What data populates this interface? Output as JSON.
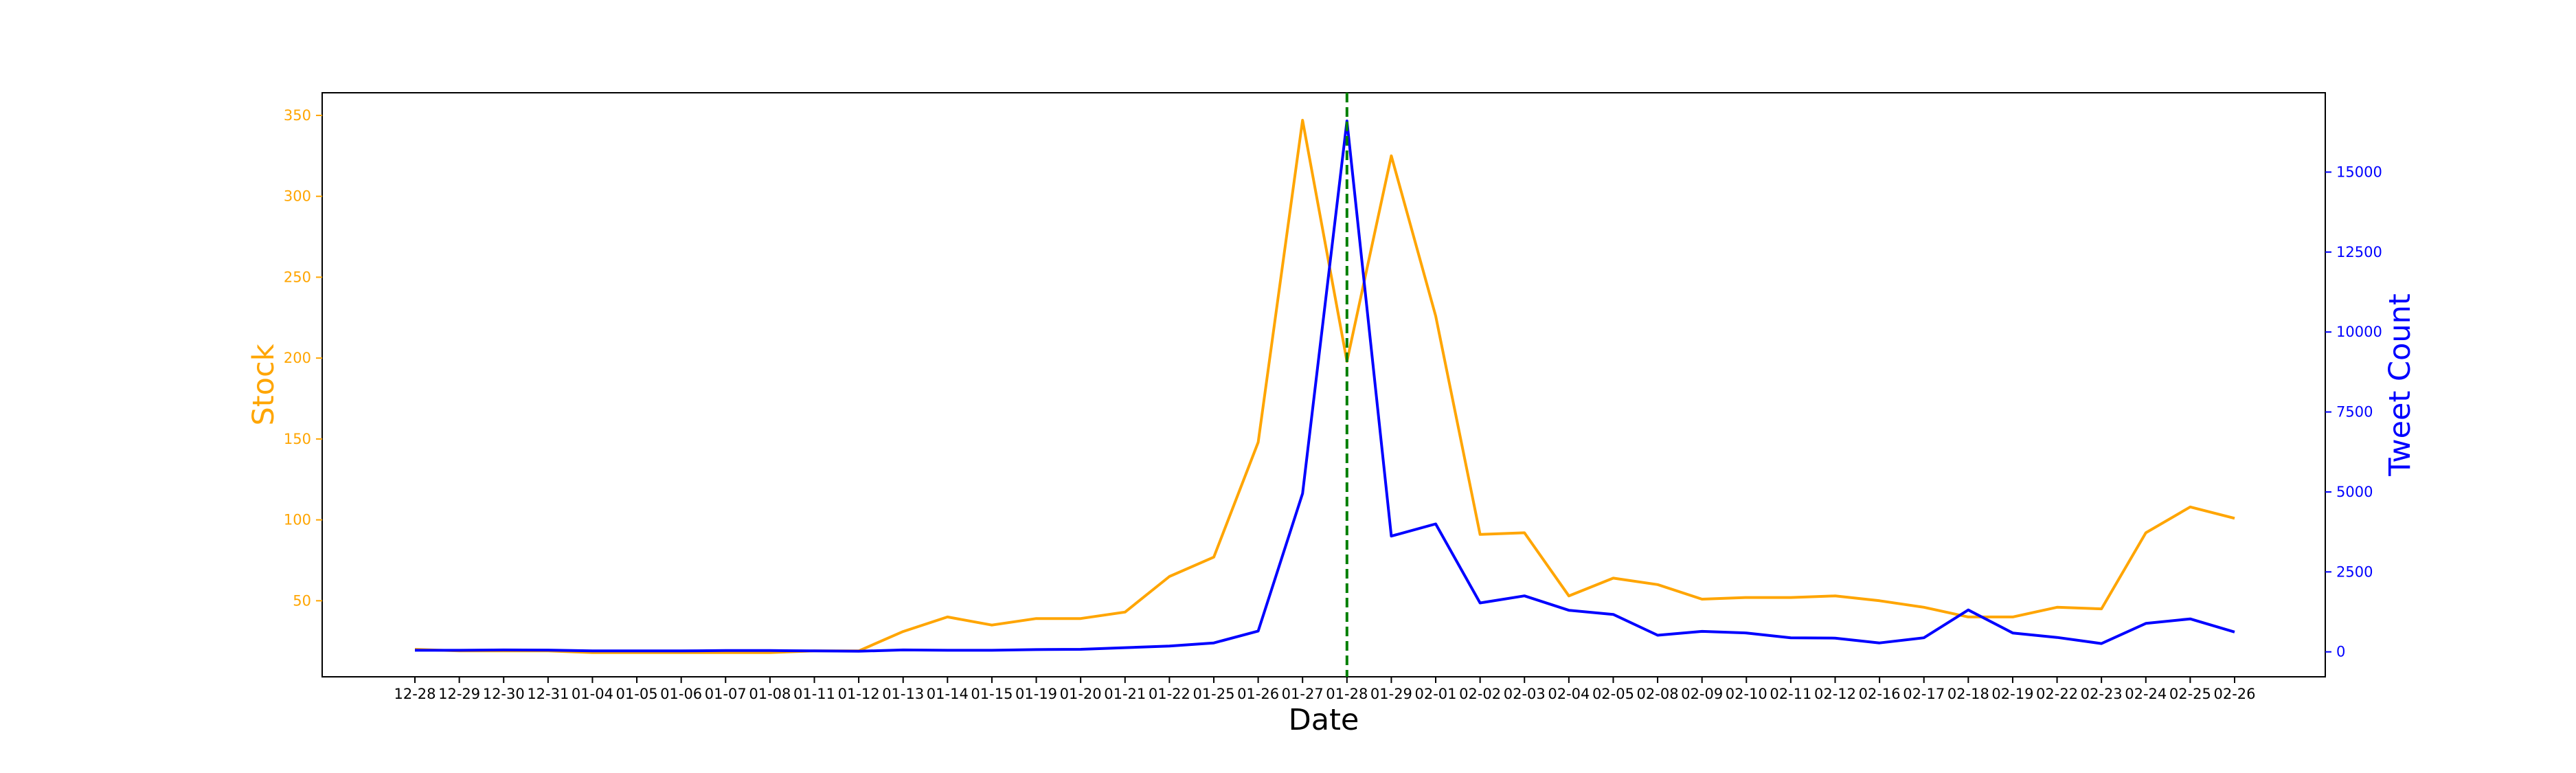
{
  "chart_data": {
    "type": "line",
    "title": "",
    "xlabel": "Date",
    "ylabel_left": "Stock",
    "ylabel_right": "Tweet Count",
    "categories": [
      "12-28",
      "12-29",
      "12-30",
      "12-31",
      "01-04",
      "01-05",
      "01-06",
      "01-07",
      "01-08",
      "01-11",
      "01-12",
      "01-13",
      "01-14",
      "01-15",
      "01-19",
      "01-20",
      "01-21",
      "01-22",
      "01-25",
      "01-26",
      "01-27",
      "01-28",
      "01-29",
      "02-01",
      "02-02",
      "02-03",
      "02-04",
      "02-05",
      "02-08",
      "02-09",
      "02-10",
      "02-11",
      "02-12",
      "02-16",
      "02-17",
      "02-18",
      "02-19",
      "02-22",
      "02-23",
      "02-24",
      "02-25",
      "02-26"
    ],
    "series": [
      {
        "name": "Stock",
        "axis": "left",
        "color": "#ffa500",
        "values": [
          20,
          19,
          19,
          19,
          18,
          18,
          18,
          18,
          18,
          19,
          19,
          31,
          40,
          35,
          39,
          39,
          43,
          65,
          77,
          148,
          347,
          198,
          325,
          226,
          91,
          92,
          53,
          64,
          60,
          51,
          52,
          52,
          53,
          50,
          46,
          40,
          40,
          46,
          45,
          92,
          108,
          101
        ]
      },
      {
        "name": "Tweet Count",
        "axis": "right",
        "color": "#0000ff",
        "values": [
          50,
          50,
          60,
          55,
          30,
          30,
          30,
          40,
          40,
          30,
          20,
          60,
          50,
          50,
          70,
          80,
          130,
          180,
          280,
          650,
          4950,
          16600,
          3620,
          4000,
          1530,
          1750,
          1300,
          1170,
          520,
          640,
          590,
          440,
          430,
          280,
          440,
          1310,
          590,
          450,
          260,
          890,
          1030,
          620
        ]
      }
    ],
    "y_left": {
      "ylim": [
        3,
        364
      ],
      "ticks": [
        50,
        100,
        150,
        200,
        250,
        300,
        350
      ],
      "color": "#ffa500"
    },
    "y_right": {
      "ylim": [
        -780,
        17480
      ],
      "ticks": [
        0,
        2500,
        5000,
        7500,
        10000,
        12500,
        15000
      ],
      "color": "#0000ff"
    },
    "vline": {
      "at": "01-28",
      "color": "#008000",
      "style": "dashed"
    },
    "grid": false,
    "legend": "none"
  }
}
